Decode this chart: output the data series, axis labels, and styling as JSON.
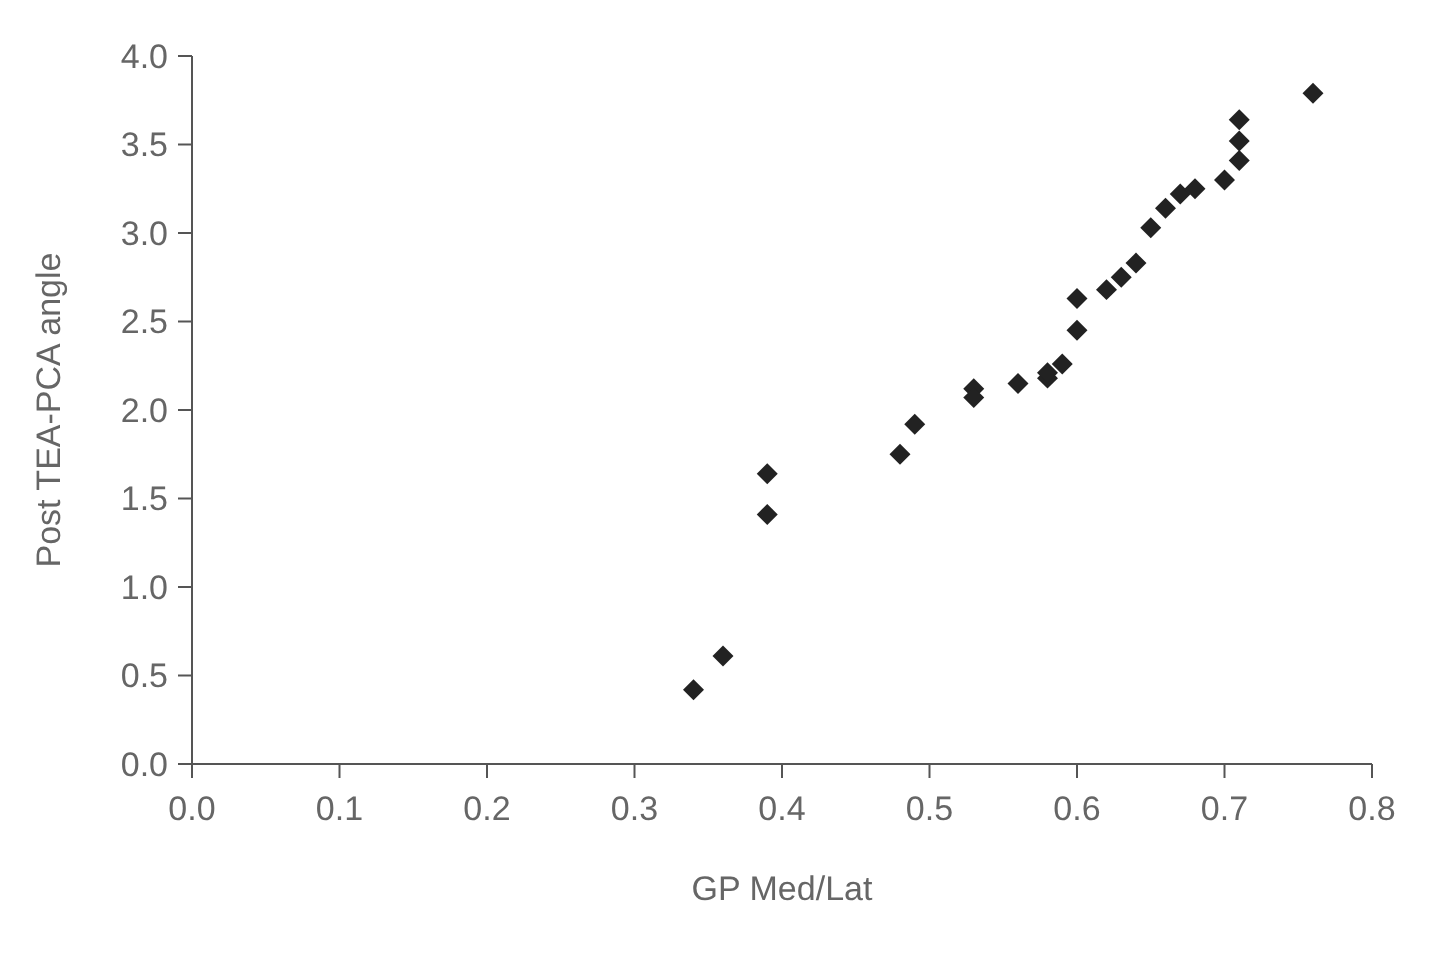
{
  "chart_data": {
    "type": "scatter",
    "xlabel": "GP Med/Lat",
    "ylabel": "Post TEA-PCA angle",
    "x": [
      0.34,
      0.36,
      0.39,
      0.39,
      0.48,
      0.49,
      0.53,
      0.53,
      0.56,
      0.58,
      0.58,
      0.59,
      0.6,
      0.6,
      0.62,
      0.63,
      0.64,
      0.65,
      0.66,
      0.67,
      0.68,
      0.7,
      0.71,
      0.71,
      0.71,
      0.76
    ],
    "series": [
      {
        "color": "#222222",
        "values": [
          0.42,
          0.61,
          1.41,
          1.64,
          1.75,
          1.92,
          2.12,
          2.07,
          2.15,
          2.18,
          2.21,
          2.26,
          2.45,
          2.63,
          2.68,
          2.75,
          2.83,
          3.03,
          3.14,
          3.22,
          3.25,
          3.3,
          3.41,
          3.52,
          3.64,
          3.79
        ]
      }
    ],
    "marker": "diamond",
    "grid": false,
    "xlim": [
      0,
      0.8
    ],
    "xticks": [
      {
        "value": 0,
        "label": "0.0"
      },
      0.1,
      0.2,
      0.3,
      0.4,
      0.5,
      0.6,
      0.7,
      0.8
    ],
    "ylim": [
      0,
      4
    ],
    "yticks": [
      {
        "value": 0,
        "label": "0.0"
      },
      0.5,
      {
        "value": 1,
        "label": "1.0"
      },
      1.5,
      {
        "value": 2,
        "label": "2.0"
      },
      2.5,
      {
        "value": 3,
        "label": "3.0"
      },
      3.5,
      {
        "value": 4,
        "label": "4.0"
      }
    ]
  }
}
